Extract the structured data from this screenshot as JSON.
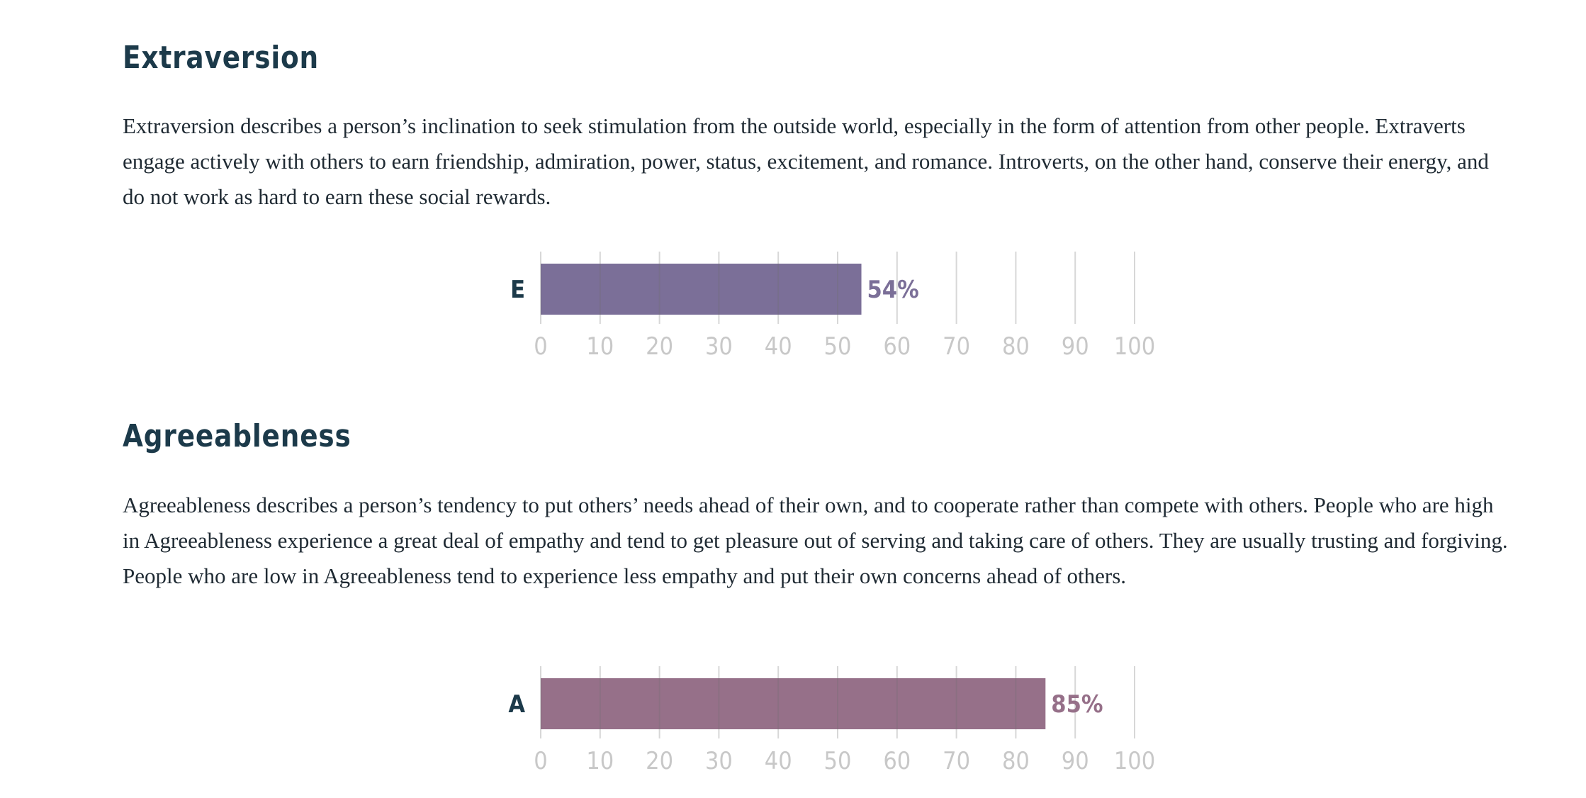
{
  "sections": [
    {
      "title": "Extraversion",
      "paragraph": "Extraversion describes a person’s inclination to seek stimulation from the outside world, especially in the form of attention from other people. Extraverts engage actively with others to earn friendship, admiration, power, status, excitement, and romance. Introverts, on the other hand, conserve their energy, and do not work as hard to earn these social rewards."
    },
    {
      "title": "Agreeableness",
      "paragraph": "Agreeableness describes a person’s tendency to put others’ needs ahead of their own, and to cooperate rather than compete with others. People who are high in Agreeableness experience a great deal of empathy and tend to get pleasure out of serving and taking care of others. They are usually trusting and forgiving. People who are low in Agreeableness tend to experience less empathy and put their own concerns ahead of others."
    }
  ],
  "chart_data": [
    {
      "type": "bar",
      "orientation": "horizontal",
      "categories": [
        "E"
      ],
      "values": [
        54
      ],
      "value_labels": [
        "54%"
      ],
      "xlim": [
        0,
        100
      ],
      "xticks": [
        "0",
        "10",
        "20",
        "30",
        "40",
        "50",
        "60",
        "70",
        "80",
        "90",
        "100"
      ],
      "grid": true,
      "bar_color": "#7b6f98",
      "label_color": "#7b6f98"
    },
    {
      "type": "bar",
      "orientation": "horizontal",
      "categories": [
        "A"
      ],
      "values": [
        85
      ],
      "value_labels": [
        "85%"
      ],
      "xlim": [
        0,
        100
      ],
      "xticks": [
        "0",
        "10",
        "20",
        "30",
        "40",
        "50",
        "60",
        "70",
        "80",
        "90",
        "100"
      ],
      "grid": true,
      "bar_color": "#967089",
      "label_color": "#967089"
    }
  ],
  "colors": {
    "heading": "#1c3a4a",
    "category_label": "#1c3a4a",
    "tick_label": "#c8c8c8",
    "grid": "#dcdcdc"
  }
}
